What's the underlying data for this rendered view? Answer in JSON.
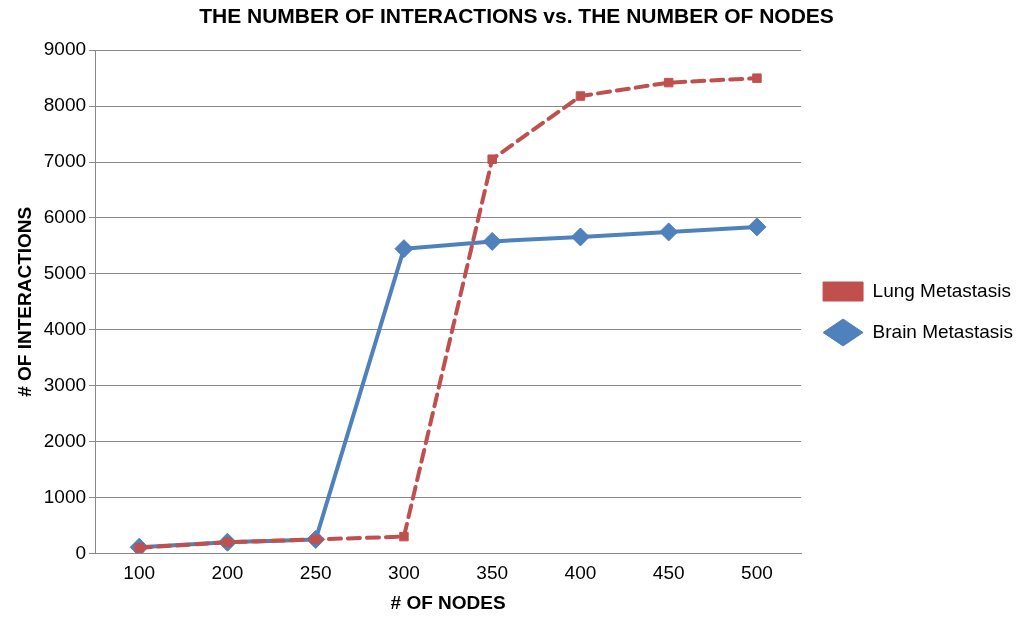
{
  "chart_data": {
    "type": "line",
    "title": "THE NUMBER OF INTERACTIONS vs. THE NUMBER OF NODES",
    "xlabel": "# OF NODES",
    "ylabel": "# OF INTERACTIONS",
    "categories": [
      "100",
      "200",
      "250",
      "300",
      "350",
      "400",
      "450",
      "500"
    ],
    "series": [
      {
        "name": "Brain Metastasis",
        "color": "#4f81bd",
        "marker": "diamond",
        "line_style": "solid",
        "values": [
          110,
          200,
          250,
          5450,
          5580,
          5660,
          5750,
          5840
        ]
      },
      {
        "name": "Lung Metastasis",
        "color": "#c0504d",
        "marker": "square",
        "line_style": "dashed",
        "values": [
          100,
          200,
          250,
          300,
          7050,
          8180,
          8420,
          8500
        ]
      }
    ],
    "ylim": [
      0,
      9000
    ],
    "yticks": [
      0,
      1000,
      2000,
      3000,
      4000,
      5000,
      6000,
      7000,
      8000,
      9000
    ],
    "grid": "y",
    "legend": "right"
  }
}
